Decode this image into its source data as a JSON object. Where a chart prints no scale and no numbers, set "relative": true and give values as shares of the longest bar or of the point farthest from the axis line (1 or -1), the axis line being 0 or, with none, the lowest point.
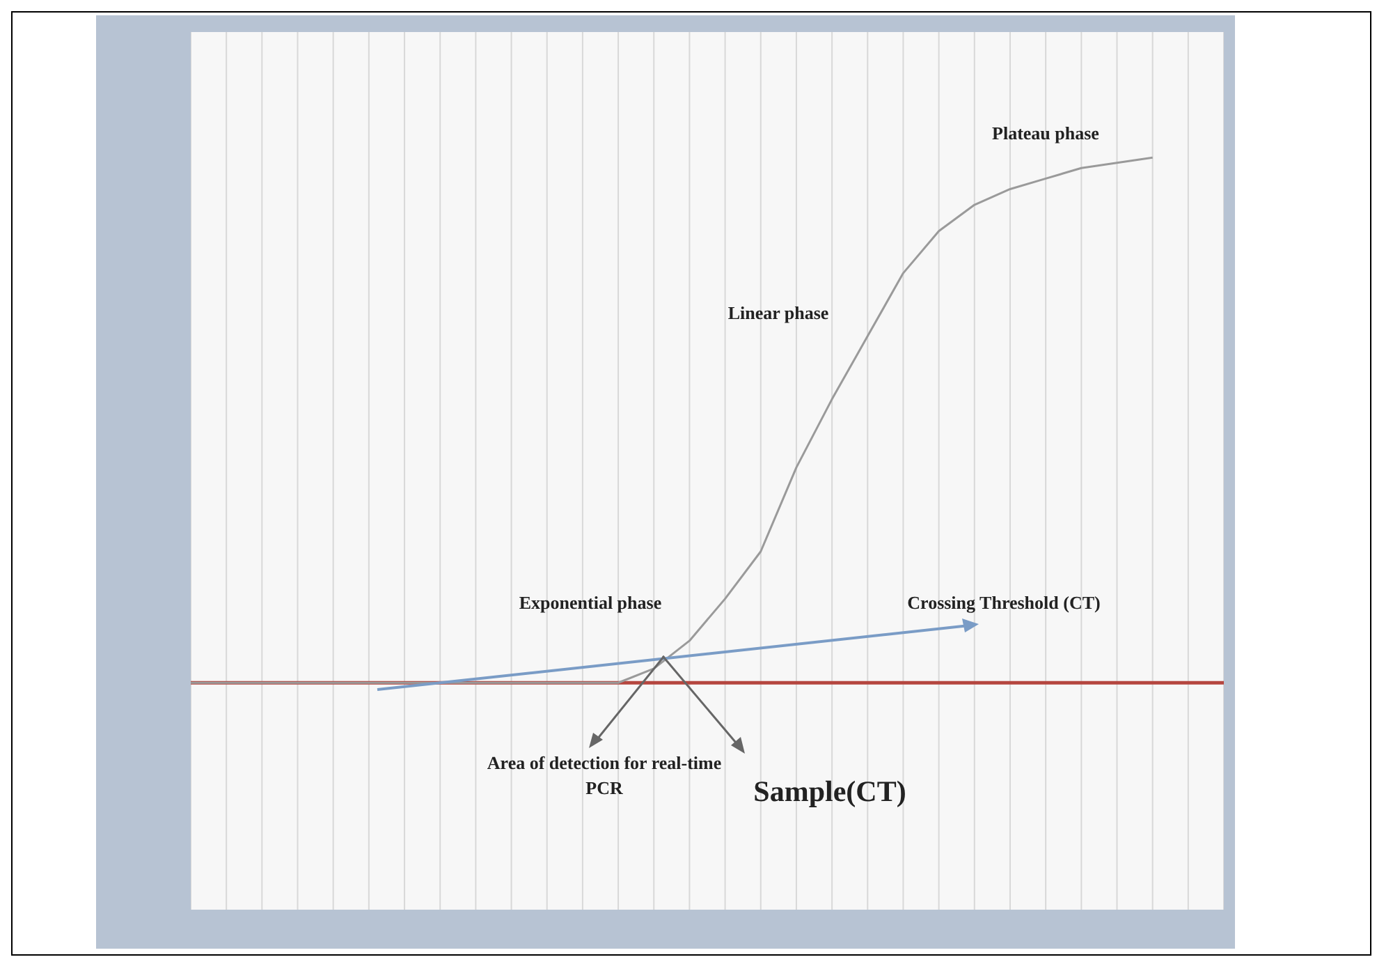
{
  "chart_data": {
    "type": "line",
    "relative": true,
    "grid": "x",
    "marker": "none",
    "tick_labels": false,
    "categories": [
      null,
      null,
      null,
      null,
      null,
      null,
      null,
      null,
      null,
      null,
      null,
      null,
      null,
      null,
      null,
      null,
      null,
      null,
      null,
      null,
      null,
      null,
      null,
      null,
      null,
      null,
      null,
      null,
      null,
      null
    ],
    "series": [
      {
        "color": "#9a9a9a",
        "values": [
          0,
          0,
          0,
          0,
          0,
          0,
          0,
          0,
          0,
          0,
          0,
          0,
          0,
          0.027,
          0.08,
          0.16,
          0.25,
          0.41,
          0.54,
          0.66,
          0.78,
          0.86,
          0.91,
          0.94,
          0.96,
          0.98,
          0.99,
          1,
          null,
          null
        ]
      }
    ],
    "ref_lines": [
      {
        "axis": "y",
        "value": 0,
        "color": "#b5463f"
      }
    ],
    "annotations": [
      "Plateau phase",
      "Linear phase",
      "Exponential phase",
      "Crossing Threshold (CT)",
      "Area of detection for real-time PCR",
      "Sample(CT)"
    ]
  }
}
